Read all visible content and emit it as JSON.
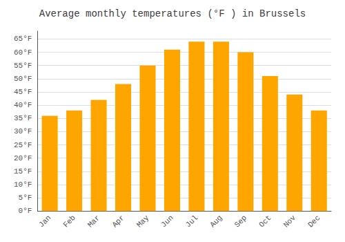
{
  "chart_data": {
    "type": "bar",
    "title": "Average monthly temperatures (°F ) in Brussels",
    "categories": [
      "Jan",
      "Feb",
      "Mar",
      "Apr",
      "May",
      "Jun",
      "Jul",
      "Aug",
      "Sep",
      "Oct",
      "Nov",
      "Dec"
    ],
    "values": [
      36,
      38,
      42,
      48,
      55,
      61,
      64,
      64,
      60,
      51,
      44,
      38
    ],
    "color": "#FFA500",
    "ylim": [
      0,
      68
    ],
    "yticks": [
      {
        "value": 0,
        "label": "0°F"
      },
      {
        "value": 5,
        "label": "5°F"
      },
      {
        "value": 10,
        "label": "10°F"
      },
      {
        "value": 15,
        "label": "15°F"
      },
      {
        "value": 20,
        "label": "20°F"
      },
      {
        "value": 25,
        "label": "25°F"
      },
      {
        "value": 30,
        "label": "30°F"
      },
      {
        "value": 35,
        "label": "35°F"
      },
      {
        "value": 40,
        "label": "40°F"
      },
      {
        "value": 45,
        "label": "45°F"
      },
      {
        "value": 50,
        "label": "50°F"
      },
      {
        "value": 55,
        "label": "55°F"
      },
      {
        "value": 60,
        "label": "60°F"
      },
      {
        "value": 65,
        "label": "65°F"
      }
    ],
    "grid": true
  }
}
